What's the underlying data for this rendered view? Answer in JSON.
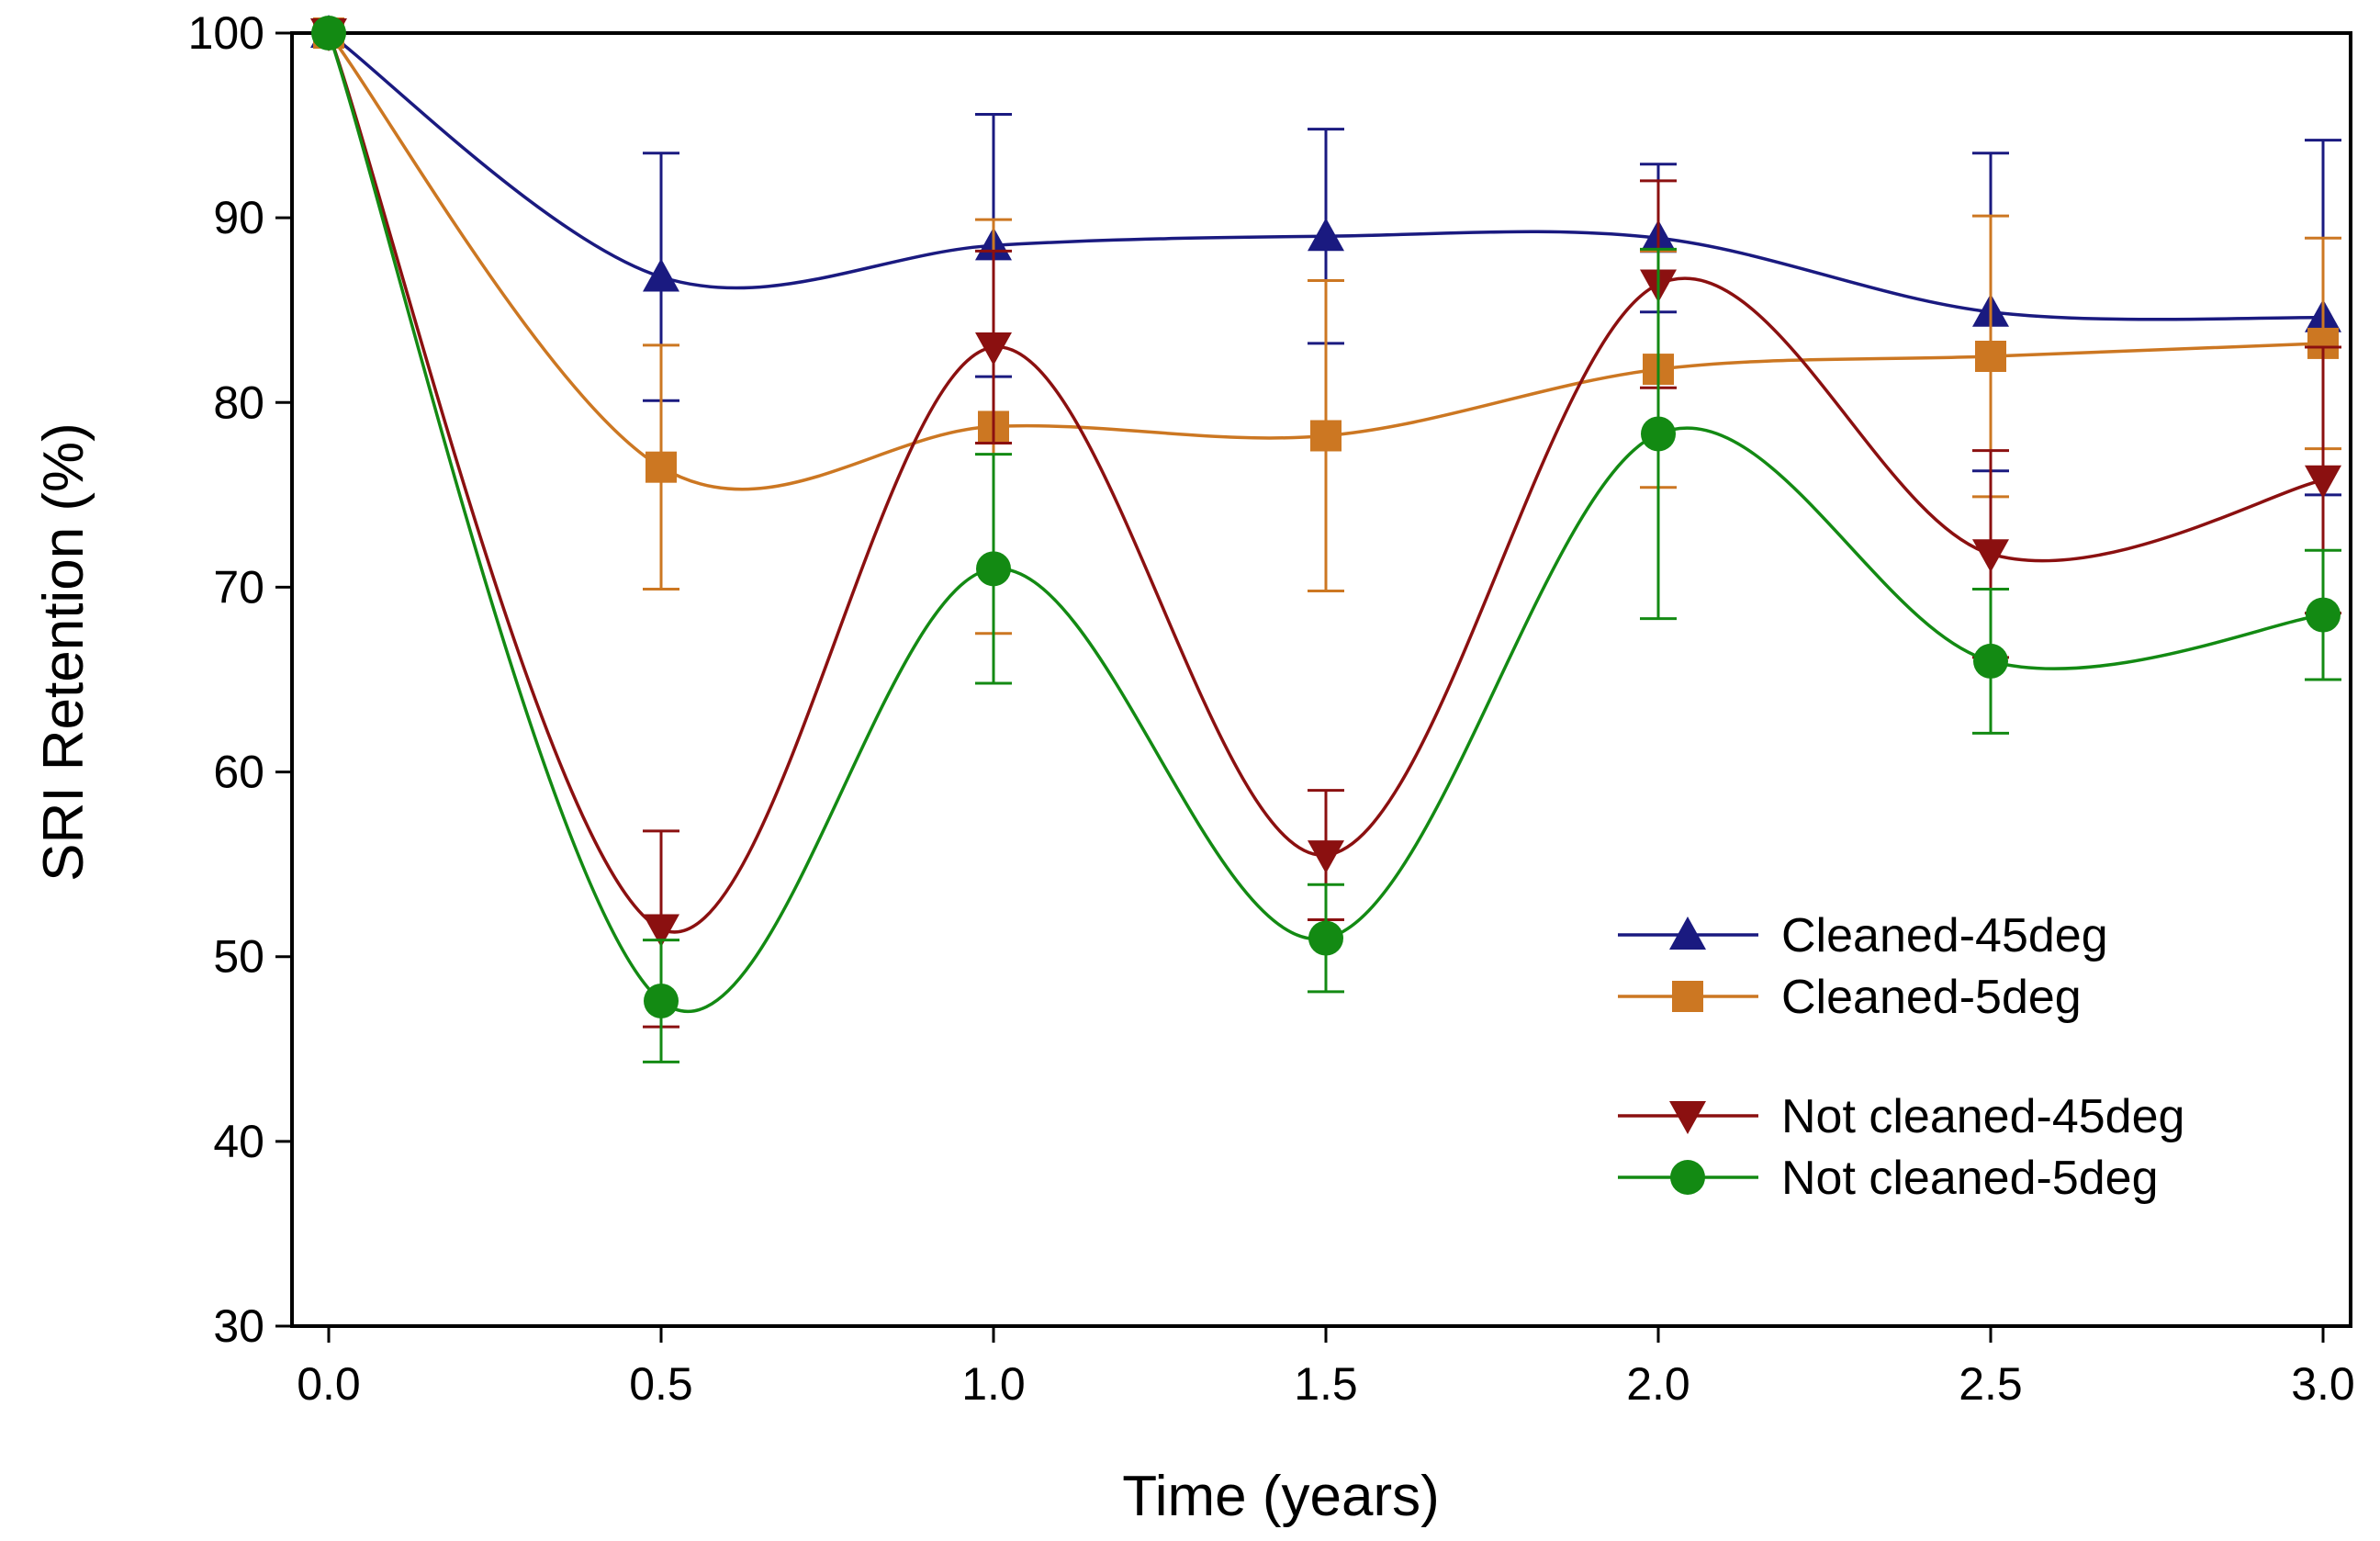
{
  "chart_data": {
    "type": "line",
    "title": "",
    "xlabel": "Time (years)",
    "ylabel": "SRI Retention (%)",
    "xlim": [
      -0.05,
      3.05
    ],
    "ylim": [
      30,
      100
    ],
    "xticks": [
      "0.0",
      "0.5",
      "1.0",
      "1.5",
      "2.0",
      "2.5",
      "3.0"
    ],
    "yticks": [
      "30",
      "40",
      "50",
      "60",
      "70",
      "80",
      "90",
      "100"
    ],
    "grid": false,
    "legend_position": "lower-right",
    "x": [
      0.0,
      0.5,
      1.0,
      1.5,
      2.0,
      2.5,
      3.0
    ],
    "series": [
      {
        "name": "Cleaned-45deg",
        "color": "#1a1a80",
        "marker": "triangle-up",
        "values": [
          100,
          86.8,
          88.5,
          89.0,
          88.9,
          84.9,
          84.6
        ],
        "errors": [
          0,
          6.7,
          7.1,
          5.8,
          4.0,
          8.6,
          9.6
        ]
      },
      {
        "name": "Cleaned-5deg",
        "color": "#cc7722",
        "marker": "square",
        "values": [
          100,
          76.5,
          78.7,
          78.2,
          81.8,
          82.5,
          83.2
        ],
        "errors": [
          0,
          6.6,
          11.2,
          8.4,
          6.4,
          7.6,
          5.7
        ]
      },
      {
        "name": "Not cleaned-45deg",
        "color": "#8b1010",
        "marker": "triangle-down",
        "values": [
          100,
          51.5,
          83.0,
          55.5,
          86.4,
          71.8,
          75.8
        ],
        "errors": [
          0,
          5.3,
          5.2,
          3.5,
          5.6,
          5.6,
          7.2
        ]
      },
      {
        "name": "Not cleaned-5deg",
        "color": "#138a13",
        "marker": "circle",
        "values": [
          100,
          47.6,
          71.0,
          51.0,
          78.3,
          66.0,
          68.5
        ],
        "errors": [
          0,
          3.3,
          6.2,
          2.9,
          10.0,
          3.9,
          3.5
        ]
      }
    ]
  }
}
